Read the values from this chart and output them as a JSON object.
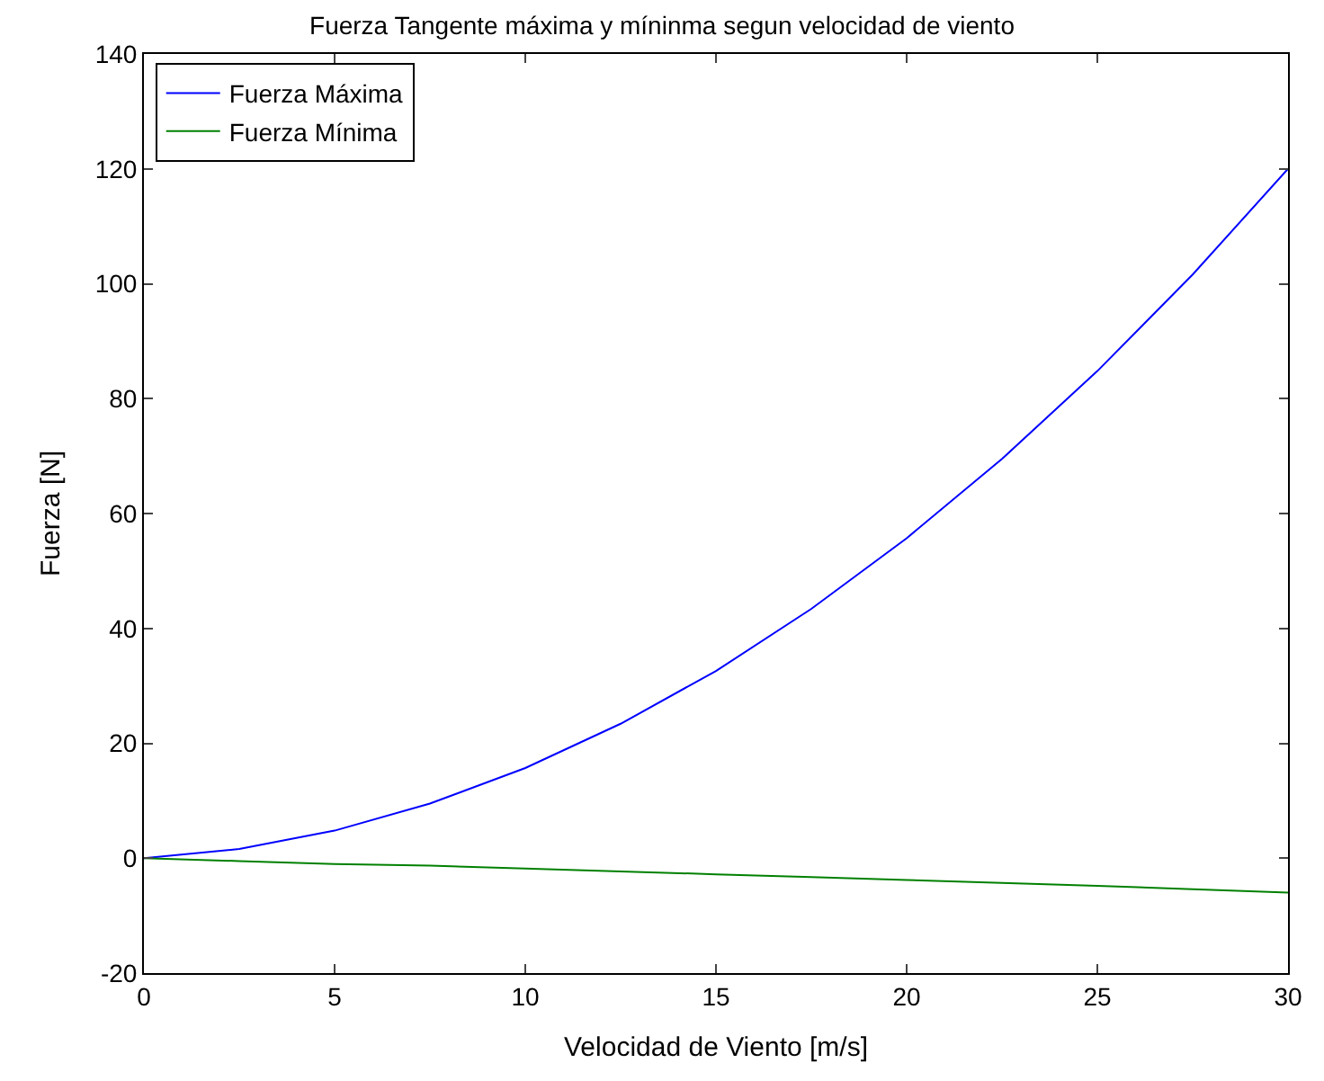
{
  "chart_data": {
    "type": "line",
    "title": "Fuerza Tangente máxima y míninma segun velocidad de viento",
    "xlabel": "Velocidad de Viento [m/s]",
    "ylabel": "Fuerza [N]",
    "x": [
      0,
      2.5,
      5,
      7.5,
      10,
      12.5,
      15,
      17.5,
      20,
      22.5,
      25,
      27.5,
      30
    ],
    "series": [
      {
        "name": "Fuerza Máxima",
        "color": "#0000ff",
        "values": [
          0,
          1.6,
          4.8,
          9.5,
          15.7,
          23.4,
          32.6,
          43.4,
          55.7,
          69.5,
          84.8,
          101.6,
          120
        ]
      },
      {
        "name": "Fuerza Mínima",
        "color": "#008000",
        "values": [
          0,
          -0.5,
          -1,
          -1.3,
          -1.8,
          -2.3,
          -2.8,
          -3.3,
          -3.8,
          -4.3,
          -4.8,
          -5.4,
          -6
        ]
      }
    ],
    "xlim": [
      0,
      30
    ],
    "xticks": [
      0,
      5,
      10,
      15,
      20,
      25,
      30
    ],
    "ylim": [
      -20,
      140
    ],
    "yticks": [
      -20,
      0,
      20,
      40,
      60,
      80,
      100,
      120,
      140
    ],
    "legend": "top left",
    "line_style": "solid",
    "marker": "none"
  }
}
